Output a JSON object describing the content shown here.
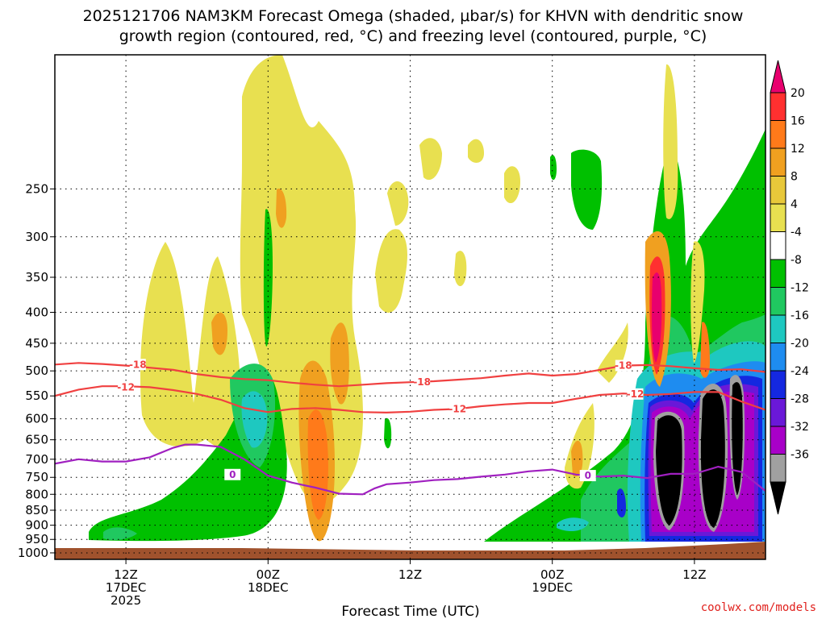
{
  "title": {
    "line1": "2025121706 NAM3KM Forecast Omega (shaded, μbar/s) for KHVN with dendritic snow",
    "line2": "growth region (contoured, red, °C) and freezing level (contoured, purple, °C)"
  },
  "credit": "coolwx.com/models",
  "chart_data": {
    "type": "time-height contour",
    "title": "2025121706 NAM3KM Forecast Omega (shaded, μbar/s) for KHVN with dendritic snow growth region (contoured, red, °C) and freezing level (contoured, purple, °C)",
    "xlabel": "Forecast Time (UTC)",
    "ylabel": "",
    "x_range_hours": [
      0,
      60
    ],
    "ylim": [
      1025,
      150
    ],
    "y_scale": "log-pressure",
    "y_ticks": [
      250,
      300,
      350,
      400,
      450,
      500,
      550,
      600,
      650,
      700,
      750,
      800,
      850,
      900,
      950,
      1000
    ],
    "x_ticks": [
      {
        "hour": 6,
        "lines": [
          "12Z",
          "17DEC",
          "2025"
        ]
      },
      {
        "hour": 18,
        "lines": [
          "00Z",
          "18DEC"
        ]
      },
      {
        "hour": 30,
        "lines": [
          "12Z"
        ]
      },
      {
        "hour": 42,
        "lines": [
          "00Z",
          "19DEC"
        ]
      },
      {
        "hour": 54,
        "lines": [
          "12Z"
        ]
      }
    ],
    "grid": true,
    "colorbar": {
      "labels": [
        "20",
        "16",
        "12",
        "8",
        "4",
        "-4",
        "-8",
        "-12",
        "-16",
        "-20",
        "-24",
        "-28",
        "-32",
        "-36"
      ],
      "colors": [
        "#e8006e",
        "#ff3030",
        "#ff7a1a",
        "#f0a020",
        "#e8c83a",
        "#e8e050",
        "#ffffff",
        "#00c000",
        "#20c860",
        "#1ec8c0",
        "#1e8cf0",
        "#1428e0",
        "#6a18d8",
        "#a800c8",
        "#a0a0a0",
        "#000000"
      ]
    },
    "contours": [
      {
        "name": "-18",
        "kind": "dendritic snow growth",
        "color": "#f04040",
        "points": [
          [
            0,
            488
          ],
          [
            2,
            485
          ],
          [
            4,
            487
          ],
          [
            6,
            490
          ],
          [
            8,
            494
          ],
          [
            10,
            498
          ],
          [
            12,
            506
          ],
          [
            14,
            512
          ],
          [
            16,
            516
          ],
          [
            18,
            518
          ],
          [
            20,
            523
          ],
          [
            22,
            527
          ],
          [
            24,
            530
          ],
          [
            26,
            527
          ],
          [
            28,
            524
          ],
          [
            30,
            522
          ],
          [
            32,
            520
          ],
          [
            34,
            517
          ],
          [
            36,
            514
          ],
          [
            38,
            509
          ],
          [
            40,
            505
          ],
          [
            42,
            509
          ],
          [
            44,
            506
          ],
          [
            46,
            498
          ],
          [
            48,
            490
          ],
          [
            50,
            489
          ],
          [
            52,
            491
          ],
          [
            54,
            495
          ],
          [
            56,
            498
          ],
          [
            58,
            497
          ],
          [
            60,
            502
          ]
        ],
        "labels": [
          [
            7,
            488
          ],
          [
            31,
            522
          ],
          [
            48,
            490
          ]
        ]
      },
      {
        "name": "-12",
        "kind": "dendritic snow growth",
        "color": "#f04040",
        "points": [
          [
            0,
            550
          ],
          [
            2,
            537
          ],
          [
            4,
            530
          ],
          [
            6,
            530
          ],
          [
            8,
            532
          ],
          [
            10,
            538
          ],
          [
            12,
            546
          ],
          [
            14,
            558
          ],
          [
            16,
            576
          ],
          [
            18,
            585
          ],
          [
            20,
            578
          ],
          [
            22,
            576
          ],
          [
            24,
            580
          ],
          [
            26,
            585
          ],
          [
            28,
            586
          ],
          [
            30,
            584
          ],
          [
            32,
            580
          ],
          [
            34,
            578
          ],
          [
            36,
            572
          ],
          [
            38,
            568
          ],
          [
            40,
            565
          ],
          [
            42,
            565
          ],
          [
            44,
            556
          ],
          [
            46,
            548
          ],
          [
            48,
            545
          ],
          [
            50,
            548
          ],
          [
            52,
            546
          ],
          [
            54,
            542
          ],
          [
            56,
            542
          ],
          [
            58,
            562
          ],
          [
            60,
            580
          ]
        ],
        "labels": [
          [
            6,
            532
          ],
          [
            34,
            578
          ],
          [
            49,
            546
          ]
        ]
      },
      {
        "name": "0",
        "kind": "freezing level",
        "color": "#a020c0",
        "points": [
          [
            0,
            712
          ],
          [
            2,
            700
          ],
          [
            4,
            706
          ],
          [
            6,
            706
          ],
          [
            8,
            695
          ],
          [
            10,
            670
          ],
          [
            11,
            662
          ],
          [
            12,
            662
          ],
          [
            14,
            668
          ],
          [
            16,
            700
          ],
          [
            18,
            745
          ],
          [
            20,
            765
          ],
          [
            22,
            780
          ],
          [
            24,
            798
          ],
          [
            26,
            800
          ],
          [
            27,
            782
          ],
          [
            28,
            770
          ],
          [
            30,
            765
          ],
          [
            32,
            758
          ],
          [
            34,
            755
          ],
          [
            36,
            748
          ],
          [
            38,
            742
          ],
          [
            40,
            733
          ],
          [
            42,
            728
          ],
          [
            44,
            742
          ],
          [
            46,
            748
          ],
          [
            48,
            745
          ],
          [
            50,
            752
          ],
          [
            52,
            740
          ],
          [
            54,
            740
          ],
          [
            56,
            720
          ],
          [
            58,
            735
          ],
          [
            60,
            790
          ]
        ],
        "labels": [
          [
            15,
            742
          ],
          [
            45,
            745
          ]
        ]
      }
    ]
  }
}
